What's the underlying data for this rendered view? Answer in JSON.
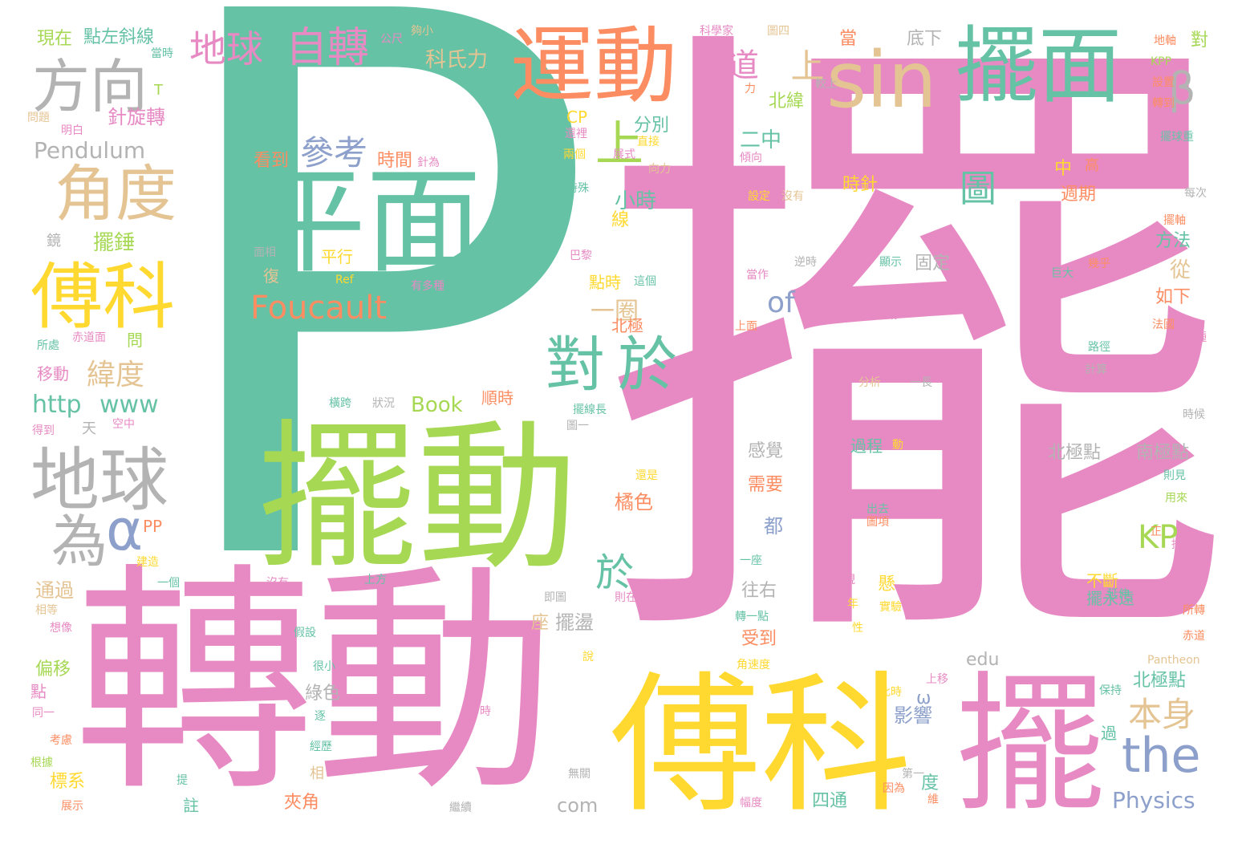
{
  "colors": {
    "pink": "#e78ac3",
    "green": "#66c2a5",
    "lime": "#a6d854",
    "yellow": "#ffd92f",
    "orange": "#fc8d62",
    "tan": "#e5c494",
    "gray": "#b3b3b3",
    "blue": "#8da0cb",
    "background": "#ffffff"
  },
  "words": [
    {
      "text": "擺",
      "color": "pink"
    },
    {
      "text": "P",
      "color": "green"
    },
    {
      "text": "轉動",
      "color": "pink"
    },
    {
      "text": "擺動",
      "color": "lime"
    },
    {
      "text": "傅科",
      "color": "yellow"
    },
    {
      "text": "擺",
      "color": "pink"
    },
    {
      "text": "平面",
      "color": "green"
    },
    {
      "text": "運動",
      "color": "orange"
    },
    {
      "text": "擺面",
      "color": "green"
    },
    {
      "text": "sin",
      "color": "tan"
    },
    {
      "text": "傅科",
      "color": "yellow"
    },
    {
      "text": "地球",
      "color": "gray"
    },
    {
      "text": "角度",
      "color": "tan"
    },
    {
      "text": "方向",
      "color": "gray"
    },
    {
      "text": "對",
      "color": "green"
    },
    {
      "text": "於",
      "color": "green"
    },
    {
      "text": "為",
      "color": "gray"
    },
    {
      "text": "α",
      "color": "blue"
    },
    {
      "text": "地球",
      "color": "pink"
    },
    {
      "text": "自轉",
      "color": "pink"
    },
    {
      "text": "β",
      "color": "gray"
    },
    {
      "text": "the",
      "color": "blue"
    },
    {
      "text": "Foucault",
      "color": "orange"
    },
    {
      "text": "參考",
      "color": "blue"
    },
    {
      "text": "上",
      "color": "lime"
    },
    {
      "text": "赤道",
      "color": "pink"
    },
    {
      "text": "上",
      "color": "tan"
    },
    {
      "text": "於",
      "color": "green"
    },
    {
      "text": "本身",
      "color": "tan"
    },
    {
      "text": "KP",
      "color": "lime"
    },
    {
      "text": "圖",
      "color": "green"
    },
    {
      "text": "of",
      "color": "blue"
    },
    {
      "text": "緯度",
      "color": "tan"
    },
    {
      "text": "http",
      "color": "green"
    },
    {
      "text": "www",
      "color": "green"
    },
    {
      "text": "Pendulum",
      "color": "gray"
    },
    {
      "text": "Physics",
      "color": "blue"
    },
    {
      "text": "Book",
      "color": "lime"
    },
    {
      "text": "com",
      "color": "gray"
    },
    {
      "text": "edu",
      "color": "gray"
    },
    {
      "text": "科氏力",
      "color": "tan"
    },
    {
      "text": "點左斜線",
      "color": "green"
    },
    {
      "text": "現在",
      "color": "lime"
    },
    {
      "text": "擺錘",
      "color": "lime"
    },
    {
      "text": "針旋轉",
      "color": "pink"
    },
    {
      "text": "看到",
      "color": "orange"
    },
    {
      "text": "時間",
      "color": "orange"
    },
    {
      "text": "小時",
      "color": "green"
    },
    {
      "text": "分別",
      "color": "green"
    },
    {
      "text": "北緯",
      "color": "lime"
    },
    {
      "text": "二中",
      "color": "green"
    },
    {
      "text": "時針",
      "color": "yellow"
    },
    {
      "text": "週期",
      "color": "orange"
    },
    {
      "text": "中",
      "color": "yellow"
    },
    {
      "text": "方法",
      "color": "green"
    },
    {
      "text": "從",
      "color": "tan"
    },
    {
      "text": "如下",
      "color": "orange"
    },
    {
      "text": "固定",
      "color": "gray"
    },
    {
      "text": "北極點",
      "color": "gray"
    },
    {
      "text": "南極點",
      "color": "gray"
    },
    {
      "text": "北極點",
      "color": "green"
    },
    {
      "text": "過程",
      "color": "green"
    },
    {
      "text": "橘色",
      "color": "orange"
    },
    {
      "text": "順時",
      "color": "orange"
    },
    {
      "text": "一圈",
      "color": "tan"
    },
    {
      "text": "北極",
      "color": "orange"
    },
    {
      "text": "點時",
      "color": "yellow"
    },
    {
      "text": "平行",
      "color": "yellow"
    },
    {
      "text": "影響",
      "color": "blue"
    },
    {
      "text": "都",
      "color": "blue"
    },
    {
      "text": "感覺",
      "color": "gray"
    },
    {
      "text": "需要",
      "color": "orange"
    },
    {
      "text": "往右",
      "color": "gray"
    },
    {
      "text": "受到",
      "color": "orange"
    },
    {
      "text": "擺盪",
      "color": "gray"
    },
    {
      "text": "座",
      "color": "tan"
    },
    {
      "text": "綠色",
      "color": "gray"
    },
    {
      "text": "夾角",
      "color": "orange"
    },
    {
      "text": "四通",
      "color": "green"
    },
    {
      "text": "通過",
      "color": "tan"
    },
    {
      "text": "移動",
      "color": "pink"
    },
    {
      "text": "偏移",
      "color": "lime"
    },
    {
      "text": "標系",
      "color": "yellow"
    },
    {
      "text": "PP",
      "color": "orange"
    },
    {
      "text": "CP",
      "color": "yellow"
    },
    {
      "text": "擺永遠",
      "color": "green"
    },
    {
      "text": "不斷",
      "color": "yellow"
    },
    {
      "text": "ω",
      "color": "blue"
    },
    {
      "text": "度",
      "color": "green"
    },
    {
      "text": "當",
      "color": "orange"
    },
    {
      "text": "底下",
      "color": "gray"
    },
    {
      "text": "高",
      "color": "orange"
    },
    {
      "text": "對",
      "color": "lime"
    },
    {
      "text": "懸",
      "color": "yellow"
    },
    {
      "text": "復",
      "color": "tan"
    },
    {
      "text": "線",
      "color": "yellow"
    },
    {
      "text": "問",
      "color": "lime"
    },
    {
      "text": "點",
      "color": "pink"
    },
    {
      "text": "過",
      "color": "green"
    },
    {
      "text": "註",
      "color": "green"
    },
    {
      "text": "相",
      "color": "tan"
    },
    {
      "text": "天",
      "color": "gray"
    },
    {
      "text": "鏡",
      "color": "gray"
    },
    {
      "text": "T",
      "color": "lime"
    },
    {
      "text": "公尺",
      "color": "pink"
    },
    {
      "text": "夠小",
      "color": "tan"
    },
    {
      "text": "科學家",
      "color": "pink"
    },
    {
      "text": "圖四",
      "color": "tan"
    },
    {
      "text": "較上",
      "color": "gray"
    },
    {
      "text": "地軸",
      "color": "orange"
    },
    {
      "text": "KPP",
      "color": "lime"
    },
    {
      "text": "設置",
      "color": "orange"
    },
    {
      "text": "轉到",
      "color": "orange"
    },
    {
      "text": "擺球重",
      "color": "green"
    },
    {
      "text": "公斤",
      "color": "pink"
    },
    {
      "text": "每次",
      "color": "gray"
    },
    {
      "text": "擺軸",
      "color": "orange"
    },
    {
      "text": "設定",
      "color": "yellow"
    },
    {
      "text": "當時",
      "color": "green"
    },
    {
      "text": "問題",
      "color": "tan"
    },
    {
      "text": "明白",
      "color": "pink"
    },
    {
      "text": "力",
      "color": "orange"
    },
    {
      "text": "還",
      "color": "green"
    },
    {
      "text": "還裡",
      "color": "pink"
    },
    {
      "text": "兩個",
      "color": "yellow"
    },
    {
      "text": "展式",
      "color": "pink"
    },
    {
      "text": "直接",
      "color": "yellow"
    },
    {
      "text": "向力",
      "color": "tan"
    },
    {
      "text": "特殊",
      "color": "green"
    },
    {
      "text": "傾向",
      "color": "pink"
    },
    {
      "text": "沒有",
      "color": "tan"
    },
    {
      "text": "針為",
      "color": "pink"
    },
    {
      "text": "面相",
      "color": "gray"
    },
    {
      "text": "Ref",
      "color": "yellow"
    },
    {
      "text": "有多種",
      "color": "pink"
    },
    {
      "text": "巴黎",
      "color": "pink"
    },
    {
      "text": "這個",
      "color": "green"
    },
    {
      "text": "逆時",
      "color": "gray"
    },
    {
      "text": "當作",
      "color": "pink"
    },
    {
      "text": "顯示",
      "color": "green"
    },
    {
      "text": "幾乎",
      "color": "orange"
    },
    {
      "text": "巨大",
      "color": "green"
    },
    {
      "text": "應角",
      "color": "pink"
    },
    {
      "text": "上面",
      "color": "orange"
    },
    {
      "text": "法國",
      "color": "orange"
    },
    {
      "text": "一種",
      "color": "pink"
    },
    {
      "text": "神殿",
      "color": "pink"
    },
    {
      "text": "路徑",
      "color": "green"
    },
    {
      "text": "計算",
      "color": "gray"
    },
    {
      "text": "分析",
      "color": "tan"
    },
    {
      "text": "一長",
      "color": "gray"
    },
    {
      "text": "所處",
      "color": "green"
    },
    {
      "text": "赤道面",
      "color": "pink"
    },
    {
      "text": "得到",
      "color": "pink"
    },
    {
      "text": "空中",
      "color": "pink"
    },
    {
      "text": "橫跨",
      "color": "green"
    },
    {
      "text": "狀況",
      "color": "gray"
    },
    {
      "text": "擺線長",
      "color": "green"
    },
    {
      "text": "圖一",
      "color": "gray"
    },
    {
      "text": "時候",
      "color": "gray"
    },
    {
      "text": "還是",
      "color": "yellow"
    },
    {
      "text": "出去",
      "color": "green"
    },
    {
      "text": "圖項",
      "color": "orange"
    },
    {
      "text": "則見",
      "color": "green"
    },
    {
      "text": "用來",
      "color": "lime"
    },
    {
      "text": "正",
      "color": "orange"
    },
    {
      "text": "持續",
      "color": "pink"
    },
    {
      "text": "一座",
      "color": "green"
    },
    {
      "text": "建造",
      "color": "yellow"
    },
    {
      "text": "一個",
      "color": "green"
    },
    {
      "text": "上方",
      "color": "green"
    },
    {
      "text": "沒有",
      "color": "pink"
    },
    {
      "text": "即圖",
      "color": "gray"
    },
    {
      "text": "則在",
      "color": "pink"
    },
    {
      "text": "相等",
      "color": "tan"
    },
    {
      "text": "想像",
      "color": "pink"
    },
    {
      "text": "假設",
      "color": "green"
    },
    {
      "text": "轉一點",
      "color": "green"
    },
    {
      "text": "很小",
      "color": "green"
    },
    {
      "text": "角速度",
      "color": "yellow"
    },
    {
      "text": "說",
      "color": "yellow"
    },
    {
      "text": "年",
      "color": "yellow"
    },
    {
      "text": "實驗",
      "color": "yellow"
    },
    {
      "text": "延伸",
      "color": "green"
    },
    {
      "text": "所轉",
      "color": "orange"
    },
    {
      "text": "赤道",
      "color": "orange"
    },
    {
      "text": "Pantheon",
      "color": "tan"
    },
    {
      "text": "此時",
      "color": "yellow"
    },
    {
      "text": "上移",
      "color": "pink"
    },
    {
      "text": "保持",
      "color": "green"
    },
    {
      "text": "同一",
      "color": "pink"
    },
    {
      "text": "逐",
      "color": "green"
    },
    {
      "text": "時",
      "color": "pink"
    },
    {
      "text": "考慮",
      "color": "orange"
    },
    {
      "text": "經歷",
      "color": "green"
    },
    {
      "text": "根據",
      "color": "lime"
    },
    {
      "text": "展示",
      "color": "orange"
    },
    {
      "text": "提",
      "color": "green"
    },
    {
      "text": "無關",
      "color": "gray"
    },
    {
      "text": "繼續",
      "color": "gray"
    },
    {
      "text": "幅度",
      "color": "pink"
    },
    {
      "text": "第一",
      "color": "gray"
    },
    {
      "text": "因為",
      "color": "orange"
    },
    {
      "text": "維",
      "color": "orange"
    },
    {
      "text": "動",
      "color": "yellow"
    },
    {
      "text": "性",
      "color": "yellow"
    },
    {
      "text": "視",
      "color": "pink"
    }
  ]
}
